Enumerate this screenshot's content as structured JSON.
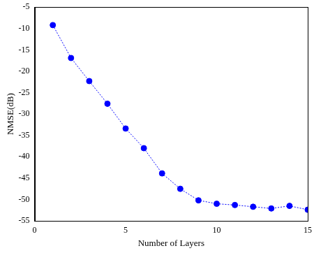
{
  "chart_data": {
    "type": "line",
    "x_label": "Number of Layers",
    "y_label": "NMSE(dB)",
    "x": [
      1,
      2,
      3,
      4,
      5,
      6,
      7,
      8,
      9,
      10,
      11,
      12,
      13,
      14,
      15
    ],
    "values": [
      -9.2,
      -16.9,
      -22.3,
      -27.6,
      -33.4,
      -38.0,
      -43.9,
      -47.5,
      -50.2,
      -51.0,
      -51.3,
      -51.7,
      -52.1,
      -51.5,
      -52.4
    ],
    "color": "#0000ff",
    "marker": "circle",
    "line_style": "dotted",
    "xlim": [
      0,
      15
    ],
    "xticks": [
      0,
      5,
      10,
      15
    ],
    "ylim": [
      -55,
      -5
    ],
    "yticks": [
      -55,
      -50,
      -45,
      -40,
      -35,
      -30,
      -25,
      -20,
      -15,
      -10,
      -5
    ],
    "grid": false
  }
}
